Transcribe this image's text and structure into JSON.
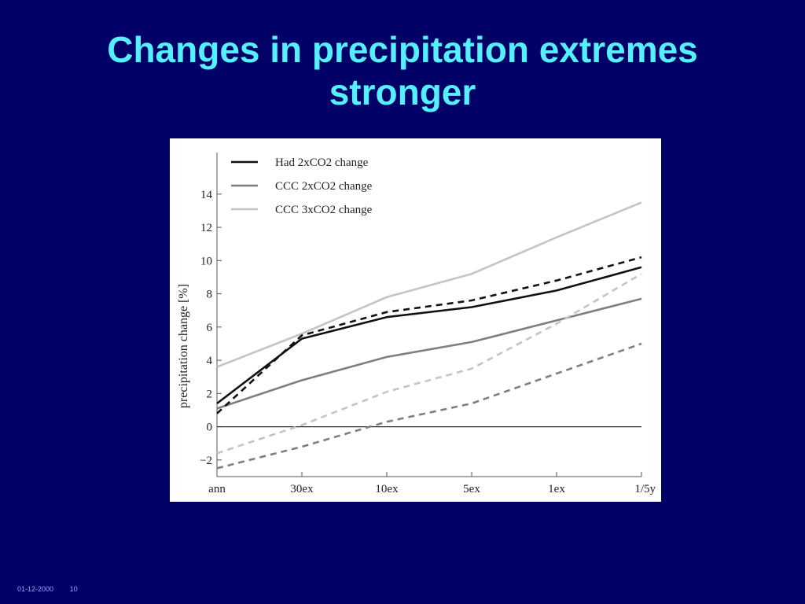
{
  "slide": {
    "title_line1": "Changes in precipitation extremes",
    "title_line2": "stronger",
    "footer_date": "01-12-2000",
    "footer_page": "10"
  },
  "chart_data": {
    "type": "line",
    "categories": [
      "ann",
      "30ex",
      "10ex",
      "5ex",
      "1ex",
      "1/5y"
    ],
    "ylabel": "precipitation change [%]",
    "ylim": [
      -3,
      16.5
    ],
    "yticks": [
      -2,
      0,
      2,
      4,
      6,
      8,
      10,
      12,
      14
    ],
    "ytick_labels": [
      "−2",
      "0",
      "2",
      "4",
      "6",
      "8",
      "10",
      "12",
      "14"
    ],
    "grid": false,
    "legend_position": "top-left",
    "zero_line": true,
    "series": [
      {
        "name": "Had 2xCO2 change",
        "color": "#111111",
        "dash": "solid",
        "values": [
          1.4,
          5.3,
          6.6,
          7.2,
          8.2,
          9.6
        ]
      },
      {
        "name": "CCC 2xCO2 change",
        "color": "#7f7f7f",
        "dash": "solid",
        "values": [
          1.1,
          2.8,
          4.2,
          5.1,
          6.4,
          7.7
        ]
      },
      {
        "name": "CCC 3xCO2 change",
        "color": "#c4c4c4",
        "dash": "solid",
        "values": [
          3.6,
          5.6,
          7.8,
          9.2,
          11.4,
          13.5
        ]
      },
      {
        "color": "#111111",
        "dash": "dashed",
        "values": [
          0.8,
          5.5,
          6.9,
          7.6,
          8.8,
          10.2
        ]
      },
      {
        "color": "#7f7f7f",
        "dash": "dashed",
        "values": [
          -2.5,
          -1.2,
          0.3,
          1.4,
          3.2,
          5.0
        ]
      },
      {
        "color": "#c4c4c4",
        "dash": "dashed",
        "values": [
          -1.6,
          0.1,
          2.1,
          3.5,
          6.2,
          9.2
        ]
      }
    ]
  }
}
